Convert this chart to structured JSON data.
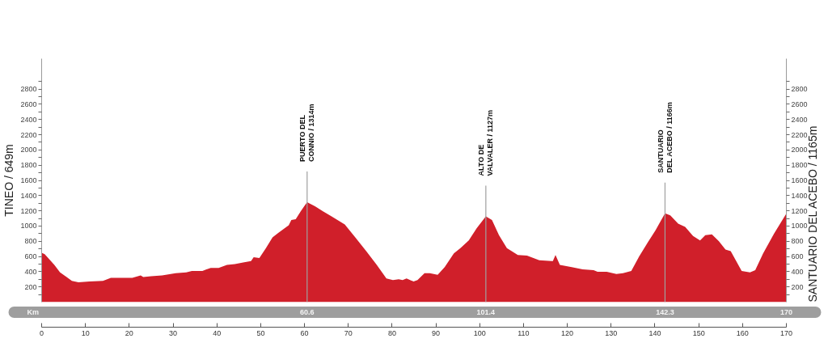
{
  "chart_data": {
    "type": "area",
    "color": "#d01f2a",
    "x": [
      0,
      0.7,
      2.9,
      4.2,
      5.7,
      6.9,
      8.4,
      10.9,
      14,
      15.8,
      20.7,
      22.6,
      23.2,
      25,
      27.5,
      30.6,
      33,
      34.3,
      36.7,
      38.6,
      40.4,
      42.3,
      44.1,
      46,
      47.8,
      48.4,
      49.7,
      51.2,
      52.7,
      54,
      55.2,
      56.4,
      57,
      58,
      59.2,
      60.6,
      62.4,
      64.3,
      66.1,
      69.2,
      71.6,
      74.1,
      76.5,
      78.7,
      80.2,
      81.5,
      82.4,
      83.3,
      84.9,
      85.8,
      87.4,
      88.6,
      90.4,
      92,
      94.1,
      95.6,
      97.5,
      99.3,
      101.4,
      102.8,
      104.4,
      106.2,
      108.7,
      110.8,
      113.6,
      116.4,
      116.7,
      117.3,
      118.3,
      121,
      123.5,
      126,
      126.9,
      129,
      131.2,
      132.7,
      134.6,
      136.4,
      138.3,
      140.1,
      142.3,
      143.5,
      145.3,
      146.9,
      148.7,
      150.3,
      151.5,
      153,
      154.6,
      156.1,
      157.3,
      159.8,
      161.7,
      162.9,
      164.7,
      167.2,
      170
    ],
    "values": [
      649,
      630,
      490,
      390,
      330,
      280,
      260,
      270,
      280,
      320,
      320,
      350,
      330,
      340,
      350,
      380,
      390,
      410,
      410,
      450,
      450,
      490,
      500,
      520,
      540,
      590,
      580,
      710,
      850,
      910,
      960,
      1010,
      1080,
      1090,
      1200,
      1314,
      1260,
      1190,
      1130,
      1020,
      850,
      670,
      490,
      310,
      290,
      300,
      290,
      310,
      270,
      290,
      380,
      380,
      360,
      460,
      640,
      710,
      810,
      970,
      1127,
      1080,
      880,
      710,
      620,
      610,
      550,
      540,
      540,
      620,
      490,
      460,
      430,
      420,
      400,
      400,
      370,
      380,
      410,
      600,
      780,
      940,
      1166,
      1140,
      1030,
      990,
      870,
      810,
      880,
      890,
      800,
      690,
      670,
      410,
      390,
      420,
      640,
      900,
      1165
    ],
    "xlim": [
      0,
      170
    ],
    "xticks": [
      0,
      10,
      20,
      30,
      40,
      50,
      60,
      70,
      80,
      90,
      100,
      110,
      120,
      130,
      140,
      150,
      160,
      170
    ],
    "x2lim": [
      0,
      170
    ],
    "x2ticks": [
      60.6,
      101.4,
      142.3,
      170
    ],
    "x2label": "Km",
    "ylim": [
      0,
      3200
    ],
    "yticks": [
      {
        "value": 100,
        "label": null
      },
      200,
      {
        "value": 300,
        "label": null
      },
      400,
      {
        "value": 500,
        "label": null
      },
      600,
      {
        "value": 700,
        "label": null
      },
      800,
      {
        "value": 900,
        "label": null
      },
      1000,
      {
        "value": 1100,
        "label": null
      },
      1200,
      {
        "value": 1300,
        "label": null
      },
      1400,
      {
        "value": 1500,
        "label": null
      },
      1600,
      {
        "value": 1700,
        "label": null
      },
      1800,
      {
        "value": 1900,
        "label": null
      },
      2000,
      {
        "value": 2100,
        "label": null
      },
      2200,
      {
        "value": 2300,
        "label": null
      },
      2400,
      {
        "value": 2500,
        "label": null
      },
      2600,
      {
        "value": 2700,
        "label": null
      },
      2800,
      {
        "value": 2900,
        "label": null
      }
    ],
    "y2lim": [
      0,
      3200
    ],
    "y2ticks": [
      {
        "value": 100,
        "label": null
      },
      200,
      {
        "value": 300,
        "label": null
      },
      400,
      {
        "value": 500,
        "label": null
      },
      600,
      {
        "value": 700,
        "label": null
      },
      800,
      {
        "value": 900,
        "label": null
      },
      1000,
      {
        "value": 1100,
        "label": null
      },
      1200,
      {
        "value": 1300,
        "label": null
      },
      1400,
      {
        "value": 1500,
        "label": null
      },
      1600,
      {
        "value": 1700,
        "label": null
      },
      1800,
      {
        "value": 1900,
        "label": null
      },
      2000,
      {
        "value": 2100,
        "label": null
      },
      2200,
      {
        "value": 2300,
        "label": null
      },
      2400,
      {
        "value": 2500,
        "label": null
      },
      2600,
      {
        "value": 2700,
        "label": null
      },
      2800,
      {
        "value": 2900,
        "label": null
      }
    ],
    "ylabel": "TINEO / 649m",
    "y2label": "SANTUARIO DEL ACEBO / 1165m",
    "ref_lines": [
      {
        "axis": "x",
        "value": 60.6,
        "label": "PUERTO DEL\nCONNIO / 1314m",
        "color": "#a0a0a0"
      },
      {
        "axis": "x",
        "value": 101.4,
        "label": "ALTO DE\nVALVALER / 1127m",
        "color": "#a0a0a0"
      },
      {
        "axis": "x",
        "value": 142.3,
        "label": "SANTUARIO\nDEL ACEBO / 1166m",
        "color": "#a0a0a0"
      }
    ]
  }
}
